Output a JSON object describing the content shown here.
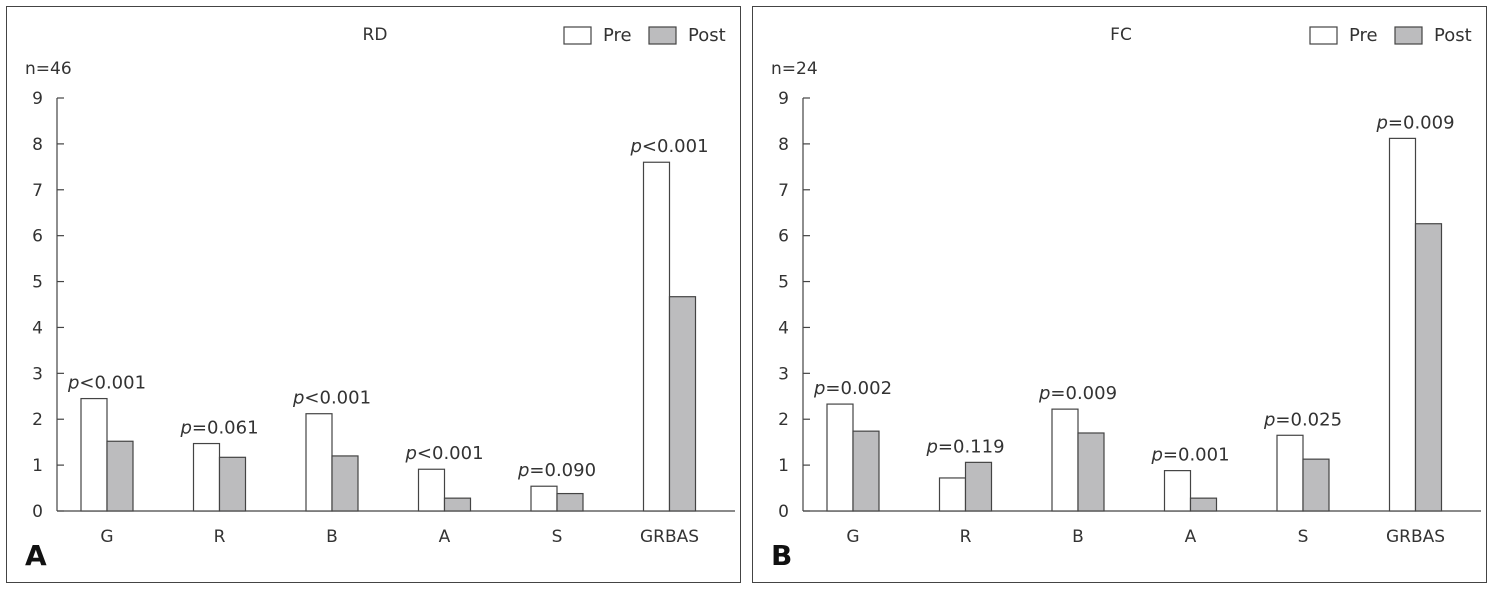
{
  "colors": {
    "pre": "#ffffff",
    "post": "#bcbcbe",
    "stroke": "#444444"
  },
  "chart_data": [
    {
      "type": "bar",
      "panel_letter": "A",
      "title": "RD",
      "n_label": "n=46",
      "categories": [
        "G",
        "R",
        "B",
        "A",
        "S",
        "GRBAS"
      ],
      "series": [
        {
          "name": "Pre",
          "values": [
            2.45,
            1.47,
            2.12,
            0.91,
            0.54,
            7.6
          ]
        },
        {
          "name": "Post",
          "values": [
            1.52,
            1.17,
            1.2,
            0.28,
            0.38,
            4.67
          ]
        }
      ],
      "p_labels": [
        {
          "prefix": "p",
          "rest": "<0.001"
        },
        {
          "prefix": "p",
          "rest": "=0.061"
        },
        {
          "prefix": "p",
          "rest": "<0.001"
        },
        {
          "prefix": "p",
          "rest": "<0.001"
        },
        {
          "prefix": "p",
          "rest": "=0.090"
        },
        {
          "prefix": "p",
          "rest": "<0.001"
        }
      ],
      "yticks": [
        "0",
        "1",
        "2",
        "3",
        "4",
        "5",
        "6",
        "7",
        "8",
        "9"
      ],
      "ylim": [
        0,
        9
      ],
      "legend": "top-right",
      "grid": false
    },
    {
      "type": "bar",
      "panel_letter": "B",
      "title": "FC",
      "n_label": "n=24",
      "categories": [
        "G",
        "R",
        "B",
        "A",
        "S",
        "GRBAS"
      ],
      "series": [
        {
          "name": "Pre",
          "values": [
            2.33,
            0.72,
            2.22,
            0.88,
            1.65,
            8.12
          ]
        },
        {
          "name": "Post",
          "values": [
            1.74,
            1.06,
            1.7,
            0.28,
            1.13,
            6.26
          ]
        }
      ],
      "p_labels": [
        {
          "prefix": "p",
          "rest": "=0.002"
        },
        {
          "prefix": "p",
          "rest": "=0.119"
        },
        {
          "prefix": "p",
          "rest": "=0.009"
        },
        {
          "prefix": "p",
          "rest": "=0.001"
        },
        {
          "prefix": "p",
          "rest": "=0.025"
        },
        {
          "prefix": "p",
          "rest": "=0.009"
        }
      ],
      "yticks": [
        "0",
        "1",
        "2",
        "3",
        "4",
        "5",
        "6",
        "7",
        "8",
        "9"
      ],
      "ylim": [
        0,
        9
      ],
      "legend": "top-right",
      "grid": false
    }
  ]
}
